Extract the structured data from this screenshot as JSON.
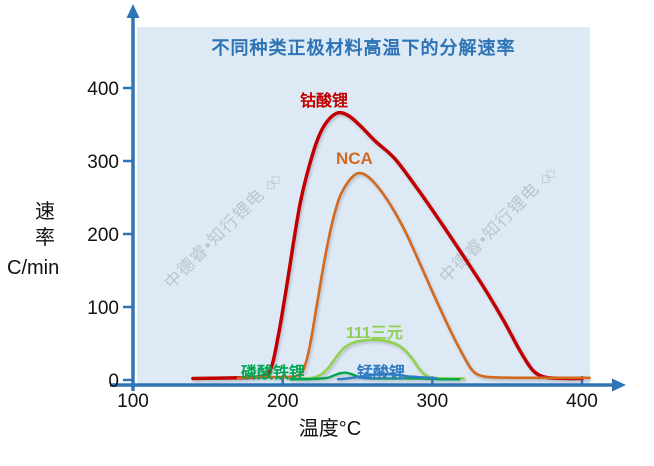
{
  "watermark": {
    "text": "中德睿•知行锂电",
    "logo_glyph": "◇◇"
  },
  "colors": {
    "plot_background": "#dde9f5",
    "axis": "#2e75b6",
    "title": "#2e74b5",
    "tick_text": "#111111",
    "watermark": "#8c939e"
  },
  "chart_data": {
    "type": "line",
    "title": "不同种类正极材料高温下的分解速率",
    "xlabel": "温度°C",
    "ylabel": "速率",
    "ylabel_unit": "C/min",
    "xlim": [
      100,
      430
    ],
    "ylim": [
      0,
      430
    ],
    "x_ticks": [
      100,
      200,
      300,
      400
    ],
    "y_ticks": [
      0,
      100,
      200,
      300,
      400
    ],
    "grid": false,
    "legend_position": "inline-labels",
    "series": [
      {
        "name": "lithium-cobalt-oxide",
        "label": "钴酸锂",
        "color": "#c00000",
        "stroke_width": 3.5,
        "peak": {
          "temp_c": 237,
          "rate": 366
        },
        "points": [
          [
            140,
            2
          ],
          [
            170,
            3
          ],
          [
            185,
            5
          ],
          [
            192,
            15
          ],
          [
            197,
            60
          ],
          [
            202,
            120
          ],
          [
            207,
            185
          ],
          [
            212,
            245
          ],
          [
            218,
            295
          ],
          [
            224,
            333
          ],
          [
            230,
            355
          ],
          [
            237,
            366
          ],
          [
            244,
            362
          ],
          [
            252,
            348
          ],
          [
            262,
            327
          ],
          [
            275,
            303
          ],
          [
            290,
            262
          ],
          [
            305,
            218
          ],
          [
            320,
            172
          ],
          [
            335,
            125
          ],
          [
            348,
            80
          ],
          [
            358,
            42
          ],
          [
            366,
            16
          ],
          [
            372,
            6
          ],
          [
            378,
            3
          ],
          [
            390,
            2
          ],
          [
            400,
            2
          ]
        ]
      },
      {
        "name": "nca",
        "label": "NCA",
        "color": "#d2691e",
        "stroke_width": 2.6,
        "peak": {
          "temp_c": 250,
          "rate": 283
        },
        "points": [
          [
            170,
            3
          ],
          [
            185,
            4
          ],
          [
            200,
            4
          ],
          [
            210,
            6
          ],
          [
            214,
            15
          ],
          [
            218,
            45
          ],
          [
            223,
            105
          ],
          [
            228,
            165
          ],
          [
            233,
            215
          ],
          [
            238,
            250
          ],
          [
            244,
            272
          ],
          [
            250,
            283
          ],
          [
            256,
            280
          ],
          [
            263,
            266
          ],
          [
            272,
            240
          ],
          [
            282,
            203
          ],
          [
            292,
            158
          ],
          [
            302,
            112
          ],
          [
            312,
            68
          ],
          [
            320,
            36
          ],
          [
            326,
            15
          ],
          [
            331,
            7
          ],
          [
            338,
            4
          ],
          [
            355,
            3
          ],
          [
            375,
            3
          ],
          [
            395,
            3
          ],
          [
            405,
            3
          ]
        ]
      },
      {
        "name": "nmc-111",
        "label": "111三元",
        "color": "#92d050",
        "stroke_width": 2.6,
        "peak": {
          "temp_c": 262,
          "rate": 55
        },
        "points": [
          [
            213,
            2
          ],
          [
            220,
            3
          ],
          [
            226,
            8
          ],
          [
            231,
            18
          ],
          [
            236,
            32
          ],
          [
            241,
            44
          ],
          [
            247,
            51
          ],
          [
            254,
            54
          ],
          [
            262,
            55
          ],
          [
            270,
            53
          ],
          [
            277,
            48
          ],
          [
            283,
            38
          ],
          [
            288,
            25
          ],
          [
            292,
            13
          ],
          [
            296,
            6
          ],
          [
            300,
            3
          ],
          [
            310,
            2
          ],
          [
            321,
            2
          ]
        ]
      },
      {
        "name": "lifepo4",
        "label": "磷酸铁锂",
        "color": "#00a550",
        "stroke_width": 2.4,
        "peak": {
          "temp_c": 242,
          "rate": 10
        },
        "points": [
          [
            205,
            1
          ],
          [
            215,
            1
          ],
          [
            225,
            2
          ],
          [
            230,
            3
          ],
          [
            234,
            6
          ],
          [
            238,
            9
          ],
          [
            242,
            10
          ],
          [
            246,
            8
          ],
          [
            250,
            5
          ],
          [
            254,
            3
          ],
          [
            260,
            2
          ],
          [
            275,
            2
          ],
          [
            290,
            2
          ],
          [
            305,
            1
          ],
          [
            318,
            1
          ]
        ]
      },
      {
        "name": "lmo",
        "label": "锰酸锂",
        "color": "#2e7bc4",
        "stroke_width": 2.4,
        "peak": {
          "temp_c": 267,
          "rate": 8
        },
        "points": [
          [
            237,
            1
          ],
          [
            243,
            2
          ],
          [
            250,
            4
          ],
          [
            257,
            6
          ],
          [
            263,
            8
          ],
          [
            270,
            8
          ],
          [
            277,
            7
          ],
          [
            284,
            5
          ],
          [
            291,
            4
          ],
          [
            298,
            3
          ],
          [
            303,
            2
          ]
        ]
      }
    ]
  }
}
